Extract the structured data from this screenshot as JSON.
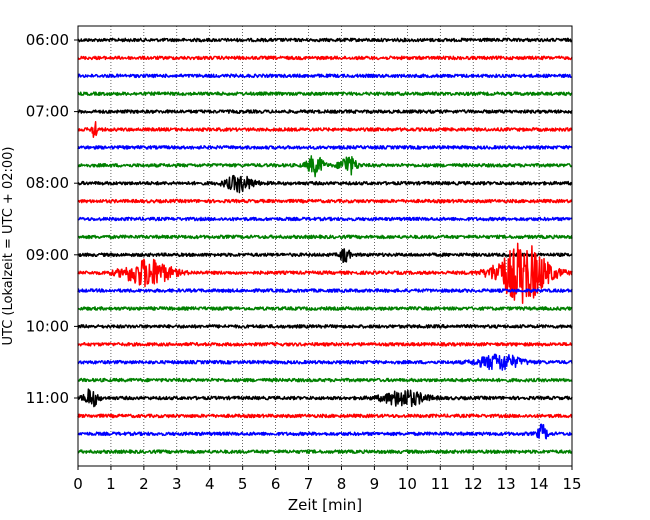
{
  "chart_data": {
    "type": "line",
    "title": "",
    "xlabel": "Zeit  [min]",
    "ylabel": "UTC (Lokalzeit = UTC + 02:00)",
    "xlim": [
      0,
      15
    ],
    "x_ticks": [
      "0",
      "1",
      "2",
      "3",
      "4",
      "5",
      "6",
      "7",
      "8",
      "9",
      "10",
      "11",
      "12",
      "13",
      "14",
      "15"
    ],
    "y_tick_labels": [
      "06:00",
      "07:00",
      "08:00",
      "09:00",
      "10:00",
      "11:00"
    ],
    "grid": "vertical dotted lines at each minute",
    "interval_minutes": 15,
    "traces": [
      {
        "start": "06:00",
        "color": "#000000",
        "events": []
      },
      {
        "start": "06:15",
        "color": "#ff0000",
        "events": []
      },
      {
        "start": "06:30",
        "color": "#0000ff",
        "events": []
      },
      {
        "start": "06:45",
        "color": "#008000",
        "events": []
      },
      {
        "start": "07:00",
        "color": "#000000",
        "events": []
      },
      {
        "start": "07:15",
        "color": "#ff0000",
        "events": [
          {
            "t": 0.5,
            "amp": 12,
            "dur": 0.1
          }
        ]
      },
      {
        "start": "07:30",
        "color": "#0000ff",
        "events": []
      },
      {
        "start": "07:45",
        "color": "#008000",
        "events": [
          {
            "t": 7.2,
            "amp": 10,
            "dur": 0.35
          },
          {
            "t": 8.2,
            "amp": 10,
            "dur": 0.35
          }
        ]
      },
      {
        "start": "08:00",
        "color": "#000000",
        "events": [
          {
            "t": 4.9,
            "amp": 8,
            "dur": 0.6
          }
        ]
      },
      {
        "start": "08:15",
        "color": "#ff0000",
        "events": []
      },
      {
        "start": "08:30",
        "color": "#0000ff",
        "events": []
      },
      {
        "start": "08:45",
        "color": "#008000",
        "events": []
      },
      {
        "start": "09:00",
        "color": "#000000",
        "events": [
          {
            "t": 8.1,
            "amp": 8,
            "dur": 0.2
          }
        ]
      },
      {
        "start": "09:15",
        "color": "#ff0000",
        "events": [
          {
            "t": 2.1,
            "amp": 14,
            "dur": 1.0
          },
          {
            "t": 13.5,
            "amp": 30,
            "dur": 1.1
          }
        ]
      },
      {
        "start": "09:30",
        "color": "#0000ff",
        "events": []
      },
      {
        "start": "09:45",
        "color": "#008000",
        "events": []
      },
      {
        "start": "10:00",
        "color": "#000000",
        "events": []
      },
      {
        "start": "10:15",
        "color": "#ff0000",
        "events": []
      },
      {
        "start": "10:30",
        "color": "#0000ff",
        "events": [
          {
            "t": 12.8,
            "amp": 8,
            "dur": 0.9
          }
        ]
      },
      {
        "start": "10:45",
        "color": "#008000",
        "events": []
      },
      {
        "start": "11:00",
        "color": "#000000",
        "events": [
          {
            "t": 0.4,
            "amp": 9,
            "dur": 0.3
          },
          {
            "t": 9.9,
            "amp": 8,
            "dur": 0.9
          }
        ]
      },
      {
        "start": "11:15",
        "color": "#ff0000",
        "events": []
      },
      {
        "start": "11:30",
        "color": "#0000ff",
        "events": [
          {
            "t": 14.1,
            "amp": 9,
            "dur": 0.2
          }
        ]
      },
      {
        "start": "11:45",
        "color": "#008000",
        "events": []
      }
    ]
  }
}
